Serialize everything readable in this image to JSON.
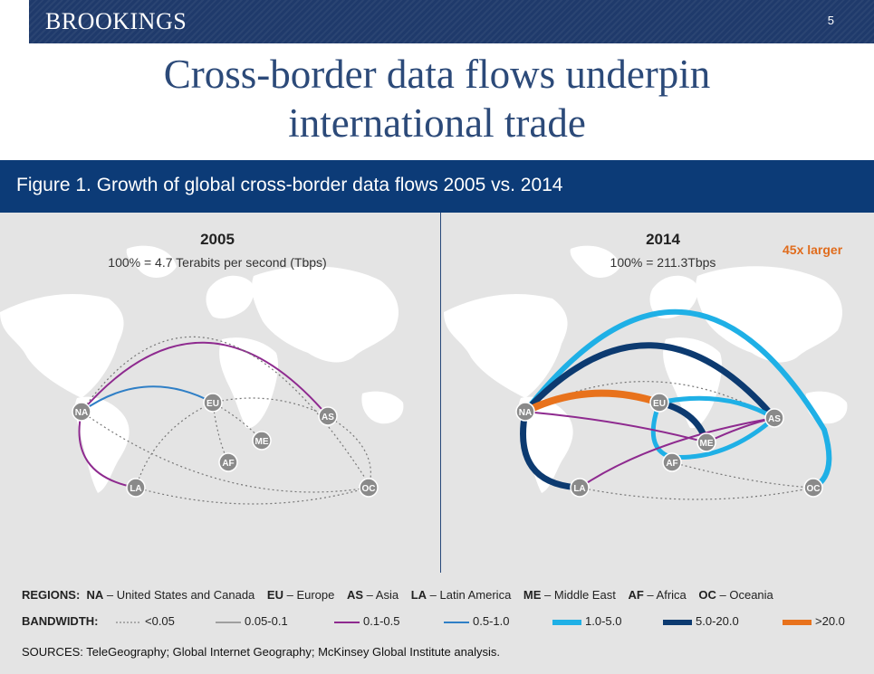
{
  "header": {
    "brand": "BROOKINGS",
    "page_number": "5"
  },
  "slide": {
    "title_line1": "Cross-border data flows underpin",
    "title_line2": "international trade"
  },
  "figure": {
    "title": "Figure 1. Growth of global cross-border data flows 2005 vs. 2014",
    "panels": [
      {
        "year": "2005",
        "subtitle": "100% = 4.7 Terabits per second (Tbps)"
      },
      {
        "year": "2014",
        "subtitle": "100% = 211.3Tbps",
        "note": "45x larger"
      }
    ],
    "node_labels": [
      "NA",
      "EU",
      "AS",
      "ME",
      "AF",
      "LA",
      "OC"
    ],
    "regions_label": "REGIONS:",
    "regions": [
      {
        "code": "NA",
        "name": "United States and Canada"
      },
      {
        "code": "EU",
        "name": "Europe"
      },
      {
        "code": "AS",
        "name": "Asia"
      },
      {
        "code": "LA",
        "name": "Latin America"
      },
      {
        "code": "ME",
        "name": "Middle East"
      },
      {
        "code": "AF",
        "name": "Africa"
      },
      {
        "code": "OC",
        "name": "Oceania"
      }
    ],
    "bandwidth_label": "BANDWIDTH:",
    "bandwidth": [
      {
        "label": "<0.05",
        "color": "#888888",
        "style": "dotted"
      },
      {
        "label": "0.05-0.1",
        "color": "#888888",
        "style": "thin"
      },
      {
        "label": "0.1-0.5",
        "color": "#8e2a8f",
        "style": "line"
      },
      {
        "label": "0.5-1.0",
        "color": "#2f7fc6",
        "style": "line"
      },
      {
        "label": "1.0-5.0",
        "color": "#1fb0e6",
        "style": "bar"
      },
      {
        "label": "5.0-20.0",
        "color": "#0c3a70",
        "style": "bar"
      },
      {
        "label": ">20.0",
        "color": "#e8721c",
        "style": "bar"
      }
    ],
    "sources": "SOURCES: TeleGeography; Global Internet Geography; McKinsey Global Institute analysis."
  }
}
